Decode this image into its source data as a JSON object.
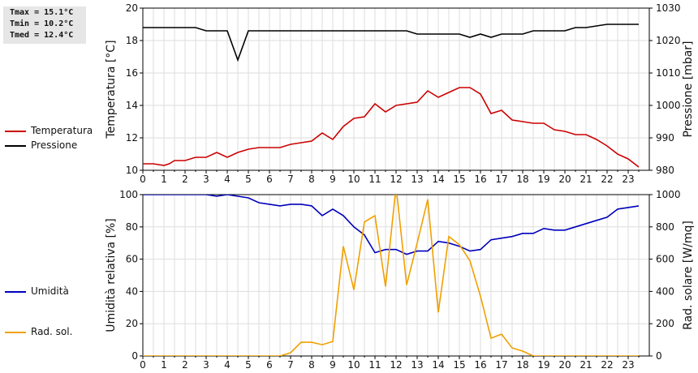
{
  "stats": {
    "tmax": "Tmax = 15.1°C",
    "tmin": "Tmin = 10.2°C",
    "tmed": "Tmed = 12.4°C"
  },
  "legend_top": [
    {
      "label": "Temperatura",
      "color": "#cc0000"
    },
    {
      "label": "Pressione",
      "color": "#000000"
    }
  ],
  "legend_bottom": [
    {
      "label": "Umidità",
      "color": "#0000bb"
    },
    {
      "label": "Rad. sol.",
      "color": "#f0a000"
    }
  ],
  "chart_data": [
    {
      "type": "line",
      "xlim": [
        0,
        24
      ],
      "x_ticks": [
        0,
        1,
        2,
        3,
        4,
        5,
        6,
        7,
        8,
        9,
        10,
        11,
        12,
        13,
        14,
        15,
        16,
        17,
        18,
        19,
        20,
        21,
        22,
        23
      ],
      "ylabel": "Temperatura [°C]",
      "ylim": [
        10,
        20
      ],
      "y_ticks": [
        10,
        12,
        14,
        16,
        18,
        20
      ],
      "ylabel_right": "Pressione [mbar]",
      "ylim_right": [
        980,
        1030
      ],
      "y_ticks_right": [
        980,
        990,
        1000,
        1010,
        1020,
        1030
      ],
      "grid": true,
      "legend_position": "left",
      "series": [
        {
          "name": "Temperatura",
          "color": "#cc0000",
          "axis": "left",
          "x": [
            0,
            0.5,
            1,
            1.25,
            1.5,
            2,
            2.5,
            3,
            3.5,
            4,
            4.5,
            5,
            5.5,
            6,
            6.5,
            7,
            7.5,
            8,
            8.5,
            9,
            9.5,
            10,
            10.5,
            11,
            11.5,
            12,
            12.5,
            13,
            13.5,
            14,
            14.5,
            15,
            15.5,
            16,
            16.5,
            17,
            17.5,
            18,
            18.5,
            19,
            19.5,
            20,
            20.5,
            21,
            21.5,
            22,
            22.5,
            23,
            23.5
          ],
          "values": [
            10.4,
            10.4,
            10.3,
            10.4,
            10.6,
            10.6,
            10.8,
            10.8,
            11.1,
            10.8,
            11.1,
            11.3,
            11.4,
            11.4,
            11.4,
            11.6,
            11.7,
            11.8,
            12.3,
            11.9,
            12.7,
            13.2,
            13.3,
            14.1,
            13.6,
            14.0,
            14.1,
            14.2,
            14.9,
            14.5,
            14.8,
            15.1,
            15.1,
            14.7,
            13.5,
            13.7,
            13.1,
            13.0,
            12.9,
            12.9,
            12.5,
            12.4,
            12.2,
            12.2,
            11.9,
            11.5,
            11.0,
            10.7,
            10.2
          ]
        },
        {
          "name": "Pressione",
          "color": "#000000",
          "axis": "right",
          "x": [
            0,
            1,
            2,
            2.5,
            3,
            4,
            4.5,
            5,
            6,
            7,
            8,
            9,
            10,
            11,
            12,
            12.5,
            13,
            14,
            14.5,
            15,
            15.5,
            16,
            16.5,
            17,
            18,
            18.5,
            19,
            20,
            20.5,
            21,
            22,
            23,
            23.5
          ],
          "values": [
            1024,
            1024,
            1024,
            1024,
            1023,
            1023,
            1014,
            1023,
            1023,
            1023,
            1023,
            1023,
            1023,
            1023,
            1023,
            1023,
            1022,
            1022,
            1022,
            1022,
            1021,
            1022,
            1021,
            1022,
            1022,
            1023,
            1023,
            1023,
            1024,
            1024,
            1025,
            1025,
            1025
          ]
        }
      ]
    },
    {
      "type": "line",
      "xlim": [
        0,
        24
      ],
      "x_ticks": [
        0,
        1,
        2,
        3,
        4,
        5,
        6,
        7,
        8,
        9,
        10,
        11,
        12,
        13,
        14,
        15,
        16,
        17,
        18,
        19,
        20,
        21,
        22,
        23
      ],
      "ylabel": "Umidità relativa [%]",
      "ylim": [
        0,
        100
      ],
      "y_ticks": [
        0,
        20,
        40,
        60,
        80,
        100
      ],
      "ylabel_right": "Rad. solare [W/mq]",
      "ylim_right": [
        0,
        1000
      ],
      "y_ticks_right": [
        0,
        200,
        400,
        600,
        800,
        1000
      ],
      "grid": true,
      "legend_position": "left",
      "series": [
        {
          "name": "Umidità",
          "color": "#0000bb",
          "axis": "left",
          "x": [
            0,
            1,
            2,
            3,
            3.5,
            4,
            4.5,
            5,
            5.5,
            6,
            6.5,
            7,
            7.5,
            8,
            8.5,
            9,
            9.5,
            10,
            10.5,
            11,
            11.5,
            12,
            12.5,
            13,
            13.5,
            14,
            14.5,
            15,
            15.5,
            16,
            16.5,
            17,
            17.5,
            18,
            18.5,
            19,
            19.5,
            20,
            20.5,
            21,
            21.5,
            22,
            22.5,
            23,
            23.5
          ],
          "values": [
            100,
            100,
            100,
            100,
            99,
            100,
            99,
            98,
            95,
            94,
            93,
            94,
            94,
            93,
            87,
            91,
            87,
            80,
            75,
            64,
            66,
            66,
            63,
            65,
            65,
            71,
            70,
            68,
            65,
            66,
            72,
            73,
            74,
            76,
            76,
            79,
            78,
            78,
            80,
            82,
            84,
            86,
            91,
            92,
            93
          ]
        },
        {
          "name": "Rad. sol.",
          "color": "#f0a000",
          "axis": "right",
          "x": [
            0,
            1,
            2,
            3,
            4,
            5,
            6,
            6.5,
            7,
            7.5,
            8,
            8.5,
            9,
            9.5,
            10,
            10.5,
            11,
            11.5,
            12,
            12.5,
            13,
            13.5,
            14,
            14.5,
            15,
            15.5,
            16,
            16.5,
            17,
            17.5,
            18,
            18.5,
            19,
            20,
            21,
            22,
            23,
            23.5
          ],
          "values": [
            0,
            0,
            0,
            0,
            0,
            0,
            0,
            0,
            20,
            85,
            85,
            70,
            90,
            680,
            410,
            830,
            870,
            430,
            1050,
            440,
            700,
            970,
            270,
            740,
            690,
            590,
            370,
            110,
            135,
            50,
            30,
            0,
            0,
            0,
            0,
            0,
            0,
            0
          ]
        }
      ]
    }
  ]
}
